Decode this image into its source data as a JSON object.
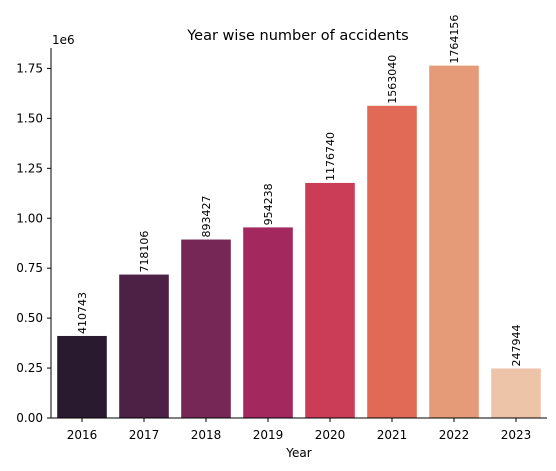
{
  "chart_data": {
    "type": "bar",
    "title": "Year wise number of accidents",
    "xlabel": "Year",
    "ylabel": "",
    "y_offset_label": "1e6",
    "categories": [
      "2016",
      "2017",
      "2018",
      "2019",
      "2020",
      "2021",
      "2022",
      "2023"
    ],
    "values": [
      410743,
      718106,
      893427,
      954238,
      1176740,
      1563040,
      1764156,
      247944
    ],
    "data_labels": [
      "410743",
      "718106",
      "893427",
      "954238",
      "1176740",
      "1563040",
      "1764156",
      "247944"
    ],
    "colors": [
      "#2a1a30",
      "#4d2146",
      "#772756",
      "#a2285e",
      "#cb3d57",
      "#e06a56",
      "#e69b78",
      "#eec4a8"
    ],
    "yticks": [
      0,
      250000,
      500000,
      750000,
      1000000,
      1250000,
      1500000,
      1750000
    ],
    "ytick_labels": [
      "0.00",
      "0.25",
      "0.50",
      "0.75",
      "1.00",
      "1.25",
      "1.50",
      "1.75"
    ],
    "ylim": [
      0,
      1852363.8
    ],
    "grid": false,
    "legend": "none"
  }
}
